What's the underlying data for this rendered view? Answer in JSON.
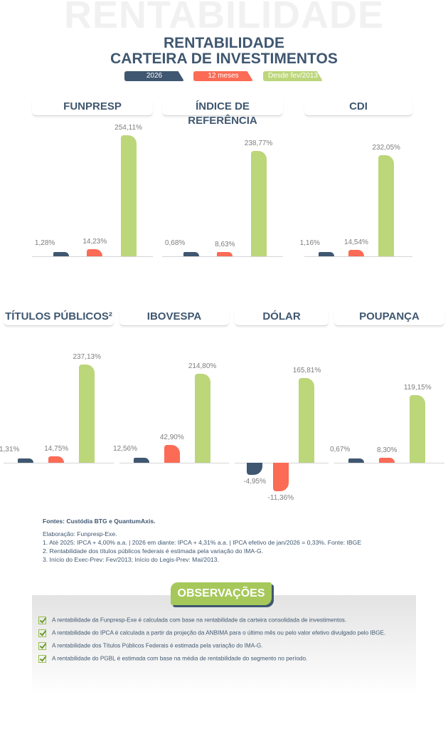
{
  "header": {
    "background_word": "RENTABILIDADE",
    "title_line1": "RENTABILIDADE",
    "title_line2": "CARTEIRA DE INVESTIMENTOS"
  },
  "colors": {
    "navy": "#3f5770",
    "coral": "#fb6b55",
    "green": "#bcd67a"
  },
  "chart_data": {
    "type": "bar",
    "series_names": [
      "2026",
      "12 meses",
      "Desde fev/2013"
    ],
    "charts": [
      {
        "title": "FUNPRESP",
        "values": [
          1.28,
          14.23,
          254.11
        ],
        "labels": [
          "1,28%",
          "14,23%",
          "254,11%"
        ]
      },
      {
        "title": "ÍNDICE DE REFERÊNCIA",
        "values": [
          0.68,
          8.63,
          238.77
        ],
        "labels": [
          "0,68%",
          "8,63%",
          "238,77%"
        ]
      },
      {
        "title": "CDI",
        "values": [
          1.16,
          14.54,
          232.05
        ],
        "labels": [
          "1,16%",
          "14,54%",
          "232,05%"
        ]
      },
      {
        "title": "TÍTULOS PÚBLICOS²",
        "values": [
          1.31,
          14.75,
          237.13
        ],
        "labels": [
          "1,31%",
          "14,75%",
          "237,13%"
        ]
      },
      {
        "title": "IBOVESPA",
        "values": [
          12.56,
          42.9,
          214.8
        ],
        "labels": [
          "12,56%",
          "42,90%",
          "214,80%"
        ]
      },
      {
        "title": "DÓLAR",
        "values": [
          -4.95,
          -11.36,
          165.81
        ],
        "labels": [
          "-4,95%",
          "-11,36%",
          "165,81%"
        ]
      },
      {
        "title": "POUPANÇA",
        "values": [
          0.67,
          8.3,
          119.15
        ],
        "labels": [
          "0,67%",
          "8,30%",
          "119,15%"
        ]
      }
    ]
  },
  "notes": {
    "sources": "Fontes: Custódia BTG e QuantumAxis.",
    "lines": [
      "Elaboração: Funpresp-Exe.",
      "1. Até 2025: IPCA + 4,00% a.a. | 2026 em diante: IPCA + 4,31% a.a. | IPCA efetivo de jan/2026 = 0,33%. Fonte: IBGE",
      "2. Rentabilidade dos títulos públicos federais é estimada pela variação do IMA-G.",
      "3. Início do Exec-Prev: Fev/2013; Início do Legis-Prev: Mai/2013."
    ]
  },
  "observacoes": {
    "title": "OBSERVAÇÕES",
    "items": [
      "A rentabilidade da Funpresp-Exe é calculada com base na rentabilidade da carteira consolidada de investimentos.",
      "A rentabilidade do IPCA é calculada a partir da projeção da ANBIMA para o último mês ou pelo valor efetivo divulgado pelo IBGE.",
      "A rentabilidade dos Títulos Públicos Federais é estimada pela variação do IMA-G.",
      "A rentabilidade do PGBL é estimada com base na média de rentabilidade do segmento no período."
    ]
  }
}
